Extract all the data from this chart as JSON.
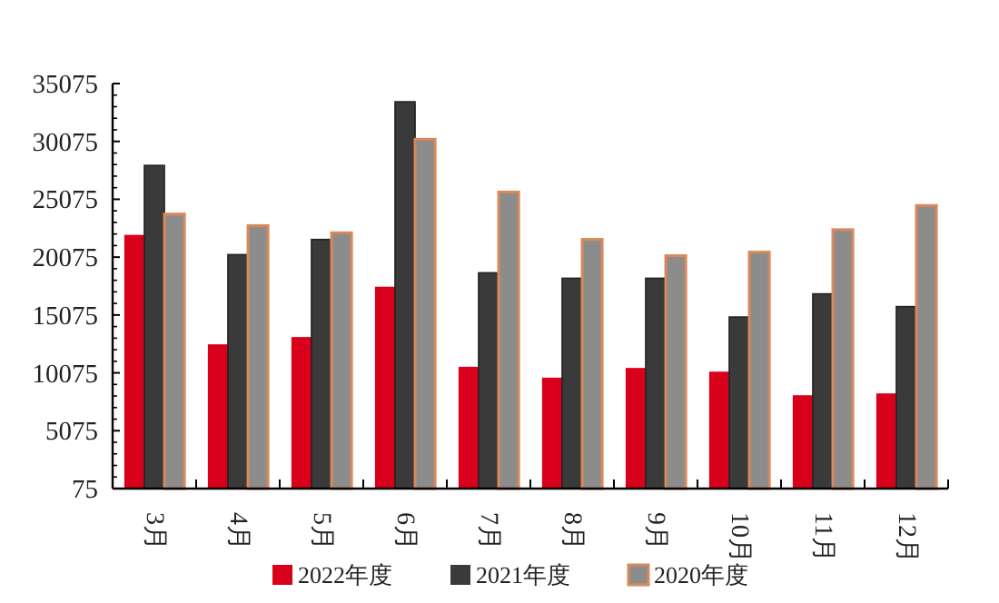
{
  "chart_data": {
    "type": "bar",
    "categories": [
      "3月",
      "4月",
      "5月",
      "6月",
      "7月",
      "8月",
      "9月",
      "10月",
      "11月",
      "12月"
    ],
    "series": [
      {
        "name": "2022年度",
        "color": "#d9001b",
        "values": [
          22000,
          12540,
          13170,
          17520,
          10600,
          9660,
          10500,
          10180,
          8140,
          8300
        ]
      },
      {
        "name": "2021年度",
        "color": "#3a3a3a",
        "values": [
          28000,
          20290,
          21600,
          33500,
          18720,
          18250,
          18250,
          14900,
          16900,
          15800
        ]
      },
      {
        "name": "2020年度",
        "color": "#8c8c8c",
        "values": [
          23800,
          22800,
          22180,
          30260,
          25700,
          21610,
          20200,
          20510,
          22450,
          24540
        ]
      }
    ],
    "ylim": [
      75,
      35075
    ],
    "yticks": [
      75,
      5075,
      10075,
      15075,
      20075,
      25075,
      30075,
      35075
    ],
    "grid": false,
    "legend": "bottom"
  }
}
